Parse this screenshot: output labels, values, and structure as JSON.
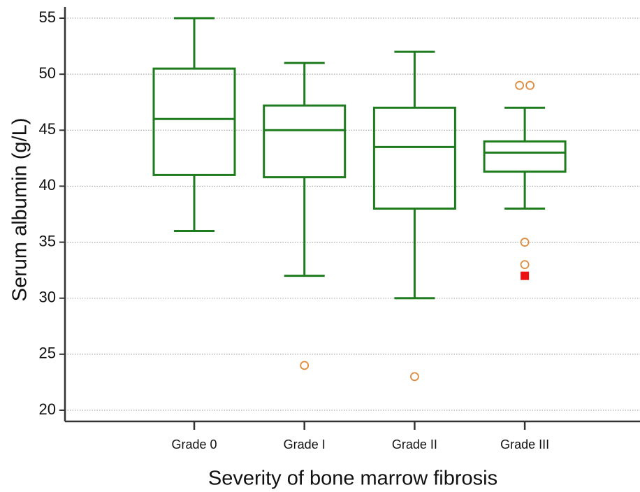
{
  "chart_data": {
    "type": "box",
    "xlabel": "Severity of bone marrow fibrosis",
    "ylabel": "Serum albumin (g/L)",
    "categories": [
      "Grade 0",
      "Grade I",
      "Grade II",
      "Grade III"
    ],
    "boxes": [
      {
        "whisker_low": 36,
        "q1": 41,
        "median": 46,
        "q3": 50.5,
        "whisker_high": 55,
        "outliers": []
      },
      {
        "whisker_low": 32,
        "q1": 40.8,
        "median": 45,
        "q3": 47.2,
        "whisker_high": 51,
        "outliers": [
          24
        ]
      },
      {
        "whisker_low": 30,
        "q1": 38,
        "median": 43.5,
        "q3": 47,
        "whisker_high": 52,
        "outliers": [
          23
        ]
      },
      {
        "whisker_low": 38,
        "q1": 41.3,
        "median": 43,
        "q3": 44,
        "whisker_high": 47,
        "outliers": [
          49,
          49,
          35,
          33
        ],
        "far_outliers": [
          32
        ]
      }
    ],
    "color": "#1e7b1e",
    "outlier_color": "#e08a3c",
    "far_outlier_color": "#ee1111",
    "ylim": [
      19,
      56
    ],
    "yticks": [
      20,
      25,
      30,
      35,
      40,
      45,
      50,
      55
    ],
    "grid": true
  }
}
